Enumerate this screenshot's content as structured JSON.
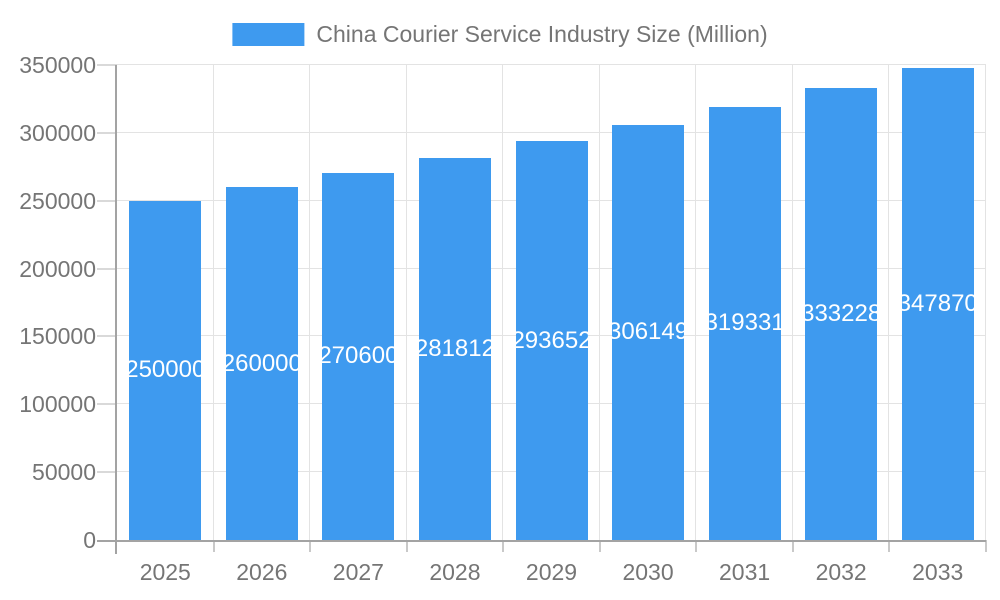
{
  "legend": {
    "label": "China Courier Service Industry Size (Million)",
    "swatch_color": "#3E9AEF"
  },
  "chart_data": {
    "type": "bar",
    "title": "China Courier Service Industry Size (Million)",
    "categories": [
      "2025",
      "2026",
      "2027",
      "2028",
      "2029",
      "2030",
      "2031",
      "2032",
      "2033"
    ],
    "values": [
      250000,
      260000,
      270600,
      281812,
      293652,
      306149,
      319331,
      333228,
      347870
    ],
    "bar_value_labels": [
      "250000",
      "260000",
      "270600",
      "281812",
      "293652",
      "306149",
      "319331",
      "333228",
      "347870"
    ],
    "xlabel": "",
    "ylabel": "",
    "ylim": [
      0,
      350000
    ],
    "ytick_interval": 50000,
    "ytick_labels": [
      "0",
      "50000",
      "100000",
      "150000",
      "200000",
      "250000",
      "300000",
      "350000"
    ],
    "grid": true,
    "legend_position": "top-center",
    "bar_color": "#3E9AEF",
    "value_label_color": "#FFFFFF",
    "axis_text_color": "#757575"
  }
}
